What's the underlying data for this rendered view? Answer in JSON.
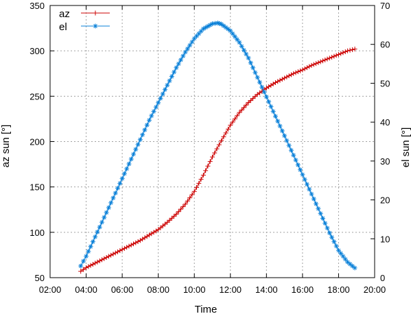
{
  "colors": {
    "az": "#cc0000",
    "el": "#0a80d8",
    "grid": "#a0a0a0",
    "frame": "#000000"
  },
  "chart_data": {
    "type": "line",
    "xlabel": "Time",
    "ylabel_left": "az sun  [°]",
    "ylabel_right": "el sun [°]",
    "xlim": [
      2,
      20
    ],
    "ylim_left": [
      50,
      350
    ],
    "ylim_right": [
      0,
      70
    ],
    "x_ticks": [
      2,
      4,
      6,
      8,
      10,
      12,
      14,
      16,
      18,
      20
    ],
    "x_tick_labels": [
      "02:00",
      "04:00",
      "06:00",
      "08:00",
      "10:00",
      "12:00",
      "14:00",
      "16:00",
      "18:00",
      "20:00"
    ],
    "y_left_ticks": [
      50,
      100,
      150,
      200,
      250,
      300,
      350
    ],
    "y_right_ticks": [
      0,
      10,
      20,
      30,
      40,
      50,
      60,
      70
    ],
    "grid": true,
    "legend_position": "top-left",
    "series": [
      {
        "name": "az",
        "axis": "left",
        "marker": "plus",
        "points": [
          [
            3.7,
            57
          ],
          [
            4.0,
            61
          ],
          [
            4.5,
            66
          ],
          [
            5.0,
            71
          ],
          [
            5.5,
            76
          ],
          [
            6.0,
            81
          ],
          [
            6.5,
            86
          ],
          [
            7.0,
            91
          ],
          [
            7.5,
            97
          ],
          [
            8.0,
            103
          ],
          [
            8.5,
            111
          ],
          [
            9.0,
            120
          ],
          [
            9.5,
            131
          ],
          [
            10.0,
            145
          ],
          [
            10.5,
            163
          ],
          [
            11.0,
            183
          ],
          [
            11.5,
            201
          ],
          [
            12.0,
            218
          ],
          [
            12.5,
            232
          ],
          [
            13.0,
            243
          ],
          [
            13.5,
            252
          ],
          [
            14.0,
            259
          ],
          [
            14.5,
            265
          ],
          [
            15.0,
            270
          ],
          [
            15.5,
            275
          ],
          [
            16.0,
            279
          ],
          [
            16.5,
            284
          ],
          [
            17.0,
            288
          ],
          [
            17.5,
            292
          ],
          [
            18.0,
            296
          ],
          [
            18.5,
            300
          ],
          [
            18.9,
            302
          ]
        ]
      },
      {
        "name": "el",
        "axis": "right",
        "marker": "star",
        "points": [
          [
            3.7,
            3
          ],
          [
            4.0,
            5.5
          ],
          [
            4.5,
            10.5
          ],
          [
            5.0,
            15.5
          ],
          [
            5.5,
            20.5
          ],
          [
            6.0,
            25.5
          ],
          [
            6.5,
            30.5
          ],
          [
            7.0,
            35.5
          ],
          [
            7.5,
            40.5
          ],
          [
            8.0,
            45
          ],
          [
            8.5,
            49.5
          ],
          [
            9.0,
            54
          ],
          [
            9.5,
            58
          ],
          [
            10.0,
            61.5
          ],
          [
            10.5,
            64
          ],
          [
            11.0,
            65.3
          ],
          [
            11.3,
            65.5
          ],
          [
            11.5,
            65.2
          ],
          [
            12.0,
            63.5
          ],
          [
            12.5,
            60.5
          ],
          [
            13.0,
            56.5
          ],
          [
            13.5,
            51.5
          ],
          [
            14.0,
            46.5
          ],
          [
            14.5,
            41.5
          ],
          [
            15.0,
            36.5
          ],
          [
            15.5,
            31.5
          ],
          [
            16.0,
            26.5
          ],
          [
            16.5,
            21.5
          ],
          [
            17.0,
            16.5
          ],
          [
            17.5,
            11.5
          ],
          [
            18.0,
            7
          ],
          [
            18.5,
            4
          ],
          [
            18.9,
            2.5
          ]
        ]
      }
    ]
  }
}
